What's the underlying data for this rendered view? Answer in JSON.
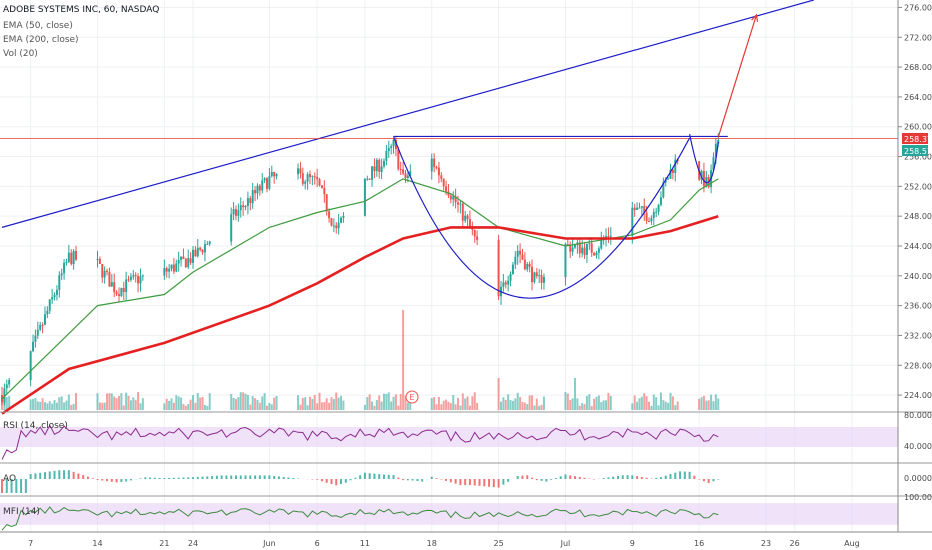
{
  "header": {
    "title": "ADOBE SYSTEMS INC, 60, NASDAQ",
    "ema50_label": "EMA (50, close)",
    "ema200_label": "EMA (200, close)",
    "vol_label": "Vol (20)"
  },
  "panes": {
    "rsi_label": "RSI (14, close)",
    "ao_label": "AO",
    "mfi_label": "MFI (14)"
  },
  "price_tags": {
    "last": "258.37",
    "prev": "258.57"
  },
  "indicator_ticks": {
    "rsi_high": "80.0000",
    "rsi_low": "40.0000",
    "ao_zero": "0.0000",
    "mfi_high": "100.0000"
  },
  "earnings_marker": "E",
  "colors": {
    "up": "#26a69a",
    "down": "#ef5350",
    "ema50": "#3f9b3f",
    "ema200": "#e52020",
    "trend": "#1f1fc8",
    "projection": "#e53935",
    "band": "#e8d6f6",
    "rsi_line": "#8c2a8c"
  },
  "chart_data": {
    "type": "candlestick",
    "title": "ADOBE SYSTEMS INC, 60, NASDAQ",
    "y_axis": {
      "side": "right",
      "range": [
        222,
        277
      ],
      "ticks": [
        224,
        228,
        232,
        236,
        240,
        244,
        248,
        252,
        256,
        260,
        264,
        268,
        272,
        276
      ]
    },
    "x_axis": {
      "labels": [
        "7",
        "14",
        "21",
        "24",
        "Jun",
        "6",
        "11",
        "18",
        "25",
        "Jul",
        "9",
        "16",
        "23",
        "26",
        "Aug"
      ],
      "label_dates": [
        "2018-05-07",
        "2018-05-14",
        "2018-05-21",
        "2018-05-24",
        "2018-06-01",
        "2018-06-06",
        "2018-06-11",
        "2018-06-18",
        "2018-06-25",
        "2018-07-02",
        "2018-07-09",
        "2018-07-16",
        "2018-07-23",
        "2018-07-26",
        "2018-08-01"
      ]
    },
    "close_path": [
      [
        "2018-05-04",
        224.0
      ],
      [
        "2018-05-07",
        229.5
      ],
      [
        "2018-05-09",
        236.0
      ],
      [
        "2018-05-11",
        242.5
      ],
      [
        "2018-05-14",
        241.5
      ],
      [
        "2018-05-16",
        238.0
      ],
      [
        "2018-05-18",
        239.5
      ],
      [
        "2018-05-21",
        240.5
      ],
      [
        "2018-05-24",
        242.5
      ],
      [
        "2018-05-29",
        249.0
      ],
      [
        "2018-06-01",
        253.0
      ],
      [
        "2018-06-04",
        253.5
      ],
      [
        "2018-06-06",
        252.5
      ],
      [
        "2018-06-08",
        246.0
      ],
      [
        "2018-06-11",
        253.0
      ],
      [
        "2018-06-13",
        255.5
      ],
      [
        "2018-06-14",
        257.5
      ],
      [
        "2018-06-15",
        253.0
      ],
      [
        "2018-06-18",
        255.5
      ],
      [
        "2018-06-20",
        251.0
      ],
      [
        "2018-06-22",
        246.5
      ],
      [
        "2018-06-25",
        237.0
      ],
      [
        "2018-06-27",
        243.5
      ],
      [
        "2018-06-29",
        239.0
      ],
      [
        "2018-07-02",
        244.0
      ],
      [
        "2018-07-05",
        243.5
      ],
      [
        "2018-07-09",
        249.0
      ],
      [
        "2018-07-11",
        248.0
      ],
      [
        "2018-07-13",
        254.0
      ],
      [
        "2018-07-15",
        259.0
      ],
      [
        "2018-07-16",
        253.5
      ],
      [
        "2018-07-17",
        252.0
      ],
      [
        "2018-07-18",
        258.4
      ]
    ],
    "series": [
      {
        "name": "EMA (50, close)",
        "type": "line",
        "points": [
          [
            "2018-05-04",
            223.5
          ],
          [
            "2018-05-10",
            231.0
          ],
          [
            "2018-05-14",
            236.0
          ],
          [
            "2018-05-21",
            237.5
          ],
          [
            "2018-05-24",
            240.5
          ],
          [
            "2018-06-01",
            246.5
          ],
          [
            "2018-06-06",
            248.5
          ],
          [
            "2018-06-11",
            250.0
          ],
          [
            "2018-06-15",
            253.0
          ],
          [
            "2018-06-20",
            251.0
          ],
          [
            "2018-06-25",
            246.5
          ],
          [
            "2018-07-02",
            244.0
          ],
          [
            "2018-07-09",
            245.5
          ],
          [
            "2018-07-13",
            247.5
          ],
          [
            "2018-07-16",
            251.5
          ],
          [
            "2018-07-18",
            253.0
          ]
        ]
      },
      {
        "name": "EMA (200, close)",
        "type": "line",
        "points": [
          [
            "2018-05-04",
            221.5
          ],
          [
            "2018-05-11",
            227.5
          ],
          [
            "2018-05-21",
            231.0
          ],
          [
            "2018-06-01",
            236.0
          ],
          [
            "2018-06-06",
            239.0
          ],
          [
            "2018-06-11",
            242.5
          ],
          [
            "2018-06-15",
            245.0
          ],
          [
            "2018-06-20",
            246.5
          ],
          [
            "2018-06-25",
            246.5
          ],
          [
            "2018-07-02",
            245.0
          ],
          [
            "2018-07-09",
            245.0
          ],
          [
            "2018-07-13",
            246.0
          ],
          [
            "2018-07-18",
            248.0
          ]
        ]
      }
    ],
    "drawings": {
      "trendline": [
        [
          "2018-05-04",
          246.5
        ],
        [
          "2018-07-28",
          277.0
        ]
      ],
      "resistance": {
        "from": "2018-06-14",
        "to": "2018-07-19",
        "y": 258.7
      },
      "cup_arc": {
        "from": [
          "2018-06-14",
          258.7
        ],
        "bottom": [
          "2018-06-27",
          237.0
        ],
        "to": [
          "2018-07-15",
          258.5
        ]
      },
      "handle_arc": {
        "from": [
          "2018-07-15",
          259.0
        ],
        "bottom": [
          "2018-07-17",
          252.5
        ],
        "to": [
          "2018-07-18",
          258.0
        ]
      },
      "projection_arrow": [
        [
          "2018-07-18",
          258.6
        ],
        [
          "2018-07-22",
          275.0
        ]
      ],
      "horizontal_line": 258.4
    },
    "volume_spikes": [
      [
        "2018-06-15",
        "high"
      ],
      [
        "2018-06-25",
        "medium"
      ],
      [
        "2018-07-03",
        "medium"
      ]
    ],
    "indicators": {
      "rsi": {
        "range": [
          0,
          100
        ],
        "band": [
          30,
          70
        ],
        "ticks": [
          80,
          40
        ]
      },
      "ao": {
        "zero_tick": 0
      },
      "mfi": {
        "range": [
          0,
          100
        ],
        "band": [
          20,
          80
        ],
        "ticks": [
          100
        ]
      }
    }
  }
}
